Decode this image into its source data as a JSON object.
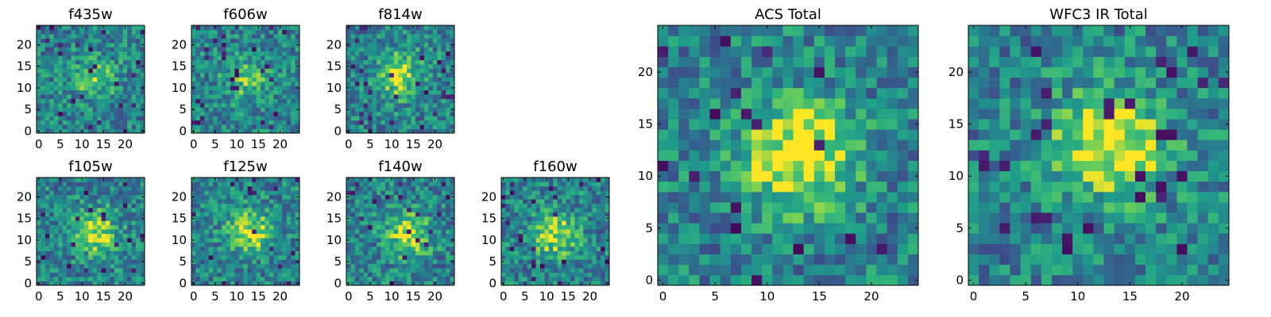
{
  "figure": {
    "colormap": "viridis",
    "frame_color": "#000000",
    "background": "#ffffff"
  },
  "chart_data": [
    {
      "id": "f435w",
      "type": "heatmap",
      "title": "f435w",
      "grid_size": 25,
      "xticks": [
        0,
        5,
        10,
        15,
        20
      ],
      "yticks": [
        0,
        5,
        10,
        15,
        20
      ],
      "xlim": [
        0,
        24
      ],
      "ylim": [
        0,
        24
      ],
      "source_bright_center": [
        13,
        12
      ],
      "source_level": "faint"
    },
    {
      "id": "f606w",
      "type": "heatmap",
      "title": "f606w",
      "grid_size": 25,
      "xticks": [
        0,
        5,
        10,
        15,
        20
      ],
      "yticks": [
        0,
        5,
        10,
        15,
        20
      ],
      "xlim": [
        0,
        24
      ],
      "ylim": [
        0,
        24
      ],
      "source_bright_center": [
        12,
        12
      ],
      "source_level": "faint"
    },
    {
      "id": "f814w",
      "type": "heatmap",
      "title": "f814w",
      "grid_size": 25,
      "xticks": [
        0,
        5,
        10,
        15,
        20
      ],
      "yticks": [
        0,
        5,
        10,
        15,
        20
      ],
      "xlim": [
        0,
        24
      ],
      "ylim": [
        0,
        24
      ],
      "source_bright_center": [
        12,
        13
      ],
      "source_level": "moderate"
    },
    {
      "id": "f105w",
      "type": "heatmap",
      "title": "f105w",
      "grid_size": 25,
      "xticks": [
        0,
        5,
        10,
        15,
        20
      ],
      "yticks": [
        0,
        5,
        10,
        15,
        20
      ],
      "xlim": [
        0,
        24
      ],
      "ylim": [
        0,
        24
      ],
      "source_bright_center": [
        13,
        12
      ],
      "source_level": "moderate"
    },
    {
      "id": "f125w",
      "type": "heatmap",
      "title": "f125w",
      "grid_size": 25,
      "xticks": [
        0,
        5,
        10,
        15,
        20
      ],
      "yticks": [
        0,
        5,
        10,
        15,
        20
      ],
      "xlim": [
        0,
        24
      ],
      "ylim": [
        0,
        24
      ],
      "source_bright_center": [
        13,
        12
      ],
      "source_level": "moderate"
    },
    {
      "id": "f140w",
      "type": "heatmap",
      "title": "f140w",
      "grid_size": 25,
      "xticks": [
        0,
        5,
        10,
        15,
        20
      ],
      "yticks": [
        0,
        5,
        10,
        15,
        20
      ],
      "xlim": [
        0,
        24
      ],
      "ylim": [
        0,
        24
      ],
      "source_bright_center": [
        14,
        11
      ],
      "source_level": "moderate"
    },
    {
      "id": "f160w",
      "type": "heatmap",
      "title": "f160w",
      "grid_size": 25,
      "xticks": [
        0,
        5,
        10,
        15,
        20
      ],
      "yticks": [
        0,
        5,
        10,
        15,
        20
      ],
      "xlim": [
        0,
        24
      ],
      "ylim": [
        0,
        24
      ],
      "source_bright_center": [
        12,
        11
      ],
      "source_level": "moderate"
    },
    {
      "id": "acs_total",
      "type": "heatmap",
      "title": "ACS Total",
      "grid_size": 25,
      "xticks": [
        0,
        5,
        10,
        15,
        20
      ],
      "yticks": [
        0,
        5,
        10,
        15,
        20
      ],
      "xlim": [
        0,
        24
      ],
      "ylim": [
        0,
        24
      ],
      "source_bright_center": [
        13,
        12
      ],
      "source_level": "strong"
    },
    {
      "id": "wfc3_ir_total",
      "type": "heatmap",
      "title": "WFC3 IR Total",
      "grid_size": 25,
      "xticks": [
        0,
        5,
        10,
        15,
        20
      ],
      "yticks": [
        0,
        5,
        10,
        15,
        20
      ],
      "xlim": [
        0,
        24
      ],
      "ylim": [
        0,
        24
      ],
      "source_bright_center": [
        13,
        13
      ],
      "source_level": "strong"
    }
  ]
}
